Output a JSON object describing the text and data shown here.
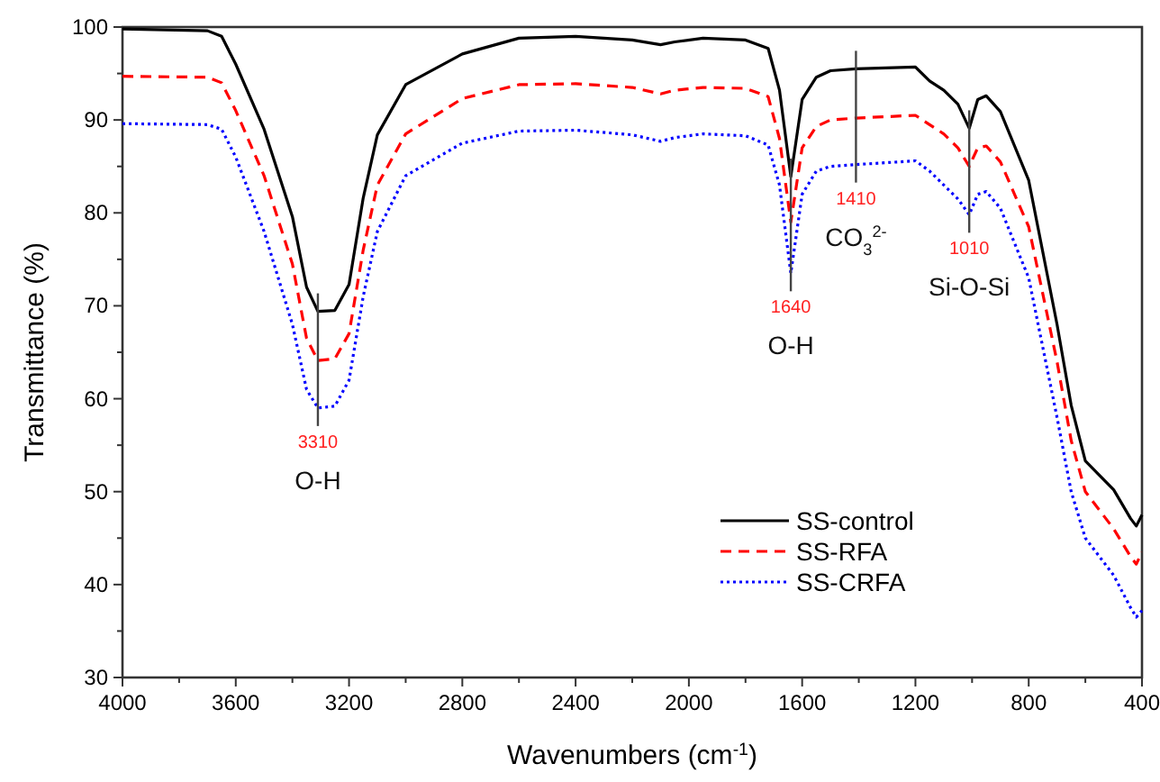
{
  "chart_data": {
    "type": "line",
    "xlabel": "Wavenumbers (cm$^{-1}$)",
    "ylabel": "Transmittance (%)",
    "xlim": [
      4000,
      400
    ],
    "ylim": [
      30,
      100
    ],
    "xticks": [
      4000,
      {
        "value": 3800,
        "label": null
      },
      3600,
      {
        "value": 3400,
        "label": null
      },
      3200,
      {
        "value": 3000,
        "label": null
      },
      2800,
      {
        "value": 2600,
        "label": null
      },
      2400,
      {
        "value": 2200,
        "label": null
      },
      2000,
      {
        "value": 1800,
        "label": null
      },
      1600,
      {
        "value": 1400,
        "label": null
      },
      1200,
      {
        "value": 1000,
        "label": null
      },
      800,
      {
        "value": 600,
        "label": null
      },
      400
    ],
    "yticks": [
      30,
      {
        "value": 35,
        "label": null
      },
      40,
      {
        "value": 45,
        "label": null
      },
      50,
      {
        "value": 55,
        "label": null
      },
      60,
      {
        "value": 65,
        "label": null
      },
      70,
      {
        "value": 75,
        "label": null
      },
      80,
      {
        "value": 85,
        "label": null
      },
      90,
      {
        "value": 95,
        "label": null
      },
      100
    ],
    "x": [
      4000,
      3700,
      3650,
      3600,
      3500,
      3400,
      3350,
      3310,
      3250,
      3200,
      3150,
      3100,
      3000,
      2800,
      2600,
      2400,
      2200,
      2100,
      2050,
      1950,
      1800,
      1720,
      1680,
      1640,
      1600,
      1550,
      1500,
      1410,
      1200,
      1150,
      1100,
      1050,
      1010,
      980,
      950,
      900,
      800,
      700,
      650,
      600,
      500,
      440,
      420,
      400
    ],
    "series": [
      {
        "name": "SS-control",
        "color": "#000000",
        "line_style": "solid",
        "values": [
          99.8,
          99.6,
          99,
          96,
          89,
          79.6,
          72,
          69.4,
          69.5,
          72.3,
          81.6,
          88.4,
          93.8,
          97.1,
          98.8,
          99,
          98.6,
          98.1,
          98.4,
          98.8,
          98.6,
          97.7,
          93.2,
          83.9,
          92.2,
          94.6,
          95.3,
          95.5,
          95.7,
          94.2,
          93.2,
          91.7,
          89.1,
          92.2,
          92.6,
          90.9,
          83.5,
          68,
          59.3,
          53.3,
          50.2,
          47.1,
          46.3,
          47.5
        ]
      },
      {
        "name": "SS-RFA",
        "color": "#ff0000",
        "line_style": "dashed",
        "values": [
          94.7,
          94.6,
          94,
          91,
          84,
          74.5,
          66.5,
          64.1,
          64.3,
          67,
          76,
          83,
          88.5,
          92.3,
          93.8,
          93.9,
          93.5,
          92.8,
          93.2,
          93.5,
          93.4,
          92.5,
          88,
          79,
          87,
          89.3,
          90,
          90.2,
          90.5,
          89.5,
          88.5,
          87,
          85,
          87,
          87.2,
          85.5,
          78.5,
          64,
          55.5,
          50,
          46,
          43,
          42.2,
          43.5
        ]
      },
      {
        "name": "SS-CRFA",
        "color": "#0000ff",
        "line_style": "dotted",
        "values": [
          89.6,
          89.5,
          89,
          86,
          78,
          68,
          61,
          59,
          59.2,
          62,
          71,
          78,
          84,
          87.5,
          88.8,
          88.9,
          88.4,
          87.7,
          88.1,
          88.5,
          88.3,
          87.3,
          83,
          73.5,
          82,
          84.5,
          85,
          85.2,
          85.6,
          84.5,
          83,
          81.5,
          79.8,
          82,
          82.3,
          80.5,
          73,
          58,
          50,
          45,
          41,
          37.5,
          36.5,
          37.2
        ]
      }
    ],
    "ref_lines": [
      {
        "axis": "x",
        "value": 3310,
        "label": "3310",
        "color": "#444444"
      },
      {
        "axis": "x",
        "value": 1640,
        "label": "1640",
        "color": "#444444"
      },
      {
        "axis": "x",
        "value": 1410,
        "label": "1410",
        "color": "#444444"
      },
      {
        "axis": "x",
        "value": 1010,
        "label": "1010",
        "color": "#444444"
      }
    ],
    "annotations": [
      "O-H",
      "O-H",
      "CO$_{3}$$^{2-}$",
      "Si-O-Si"
    ],
    "legend": "bottom right",
    "grid": false
  }
}
